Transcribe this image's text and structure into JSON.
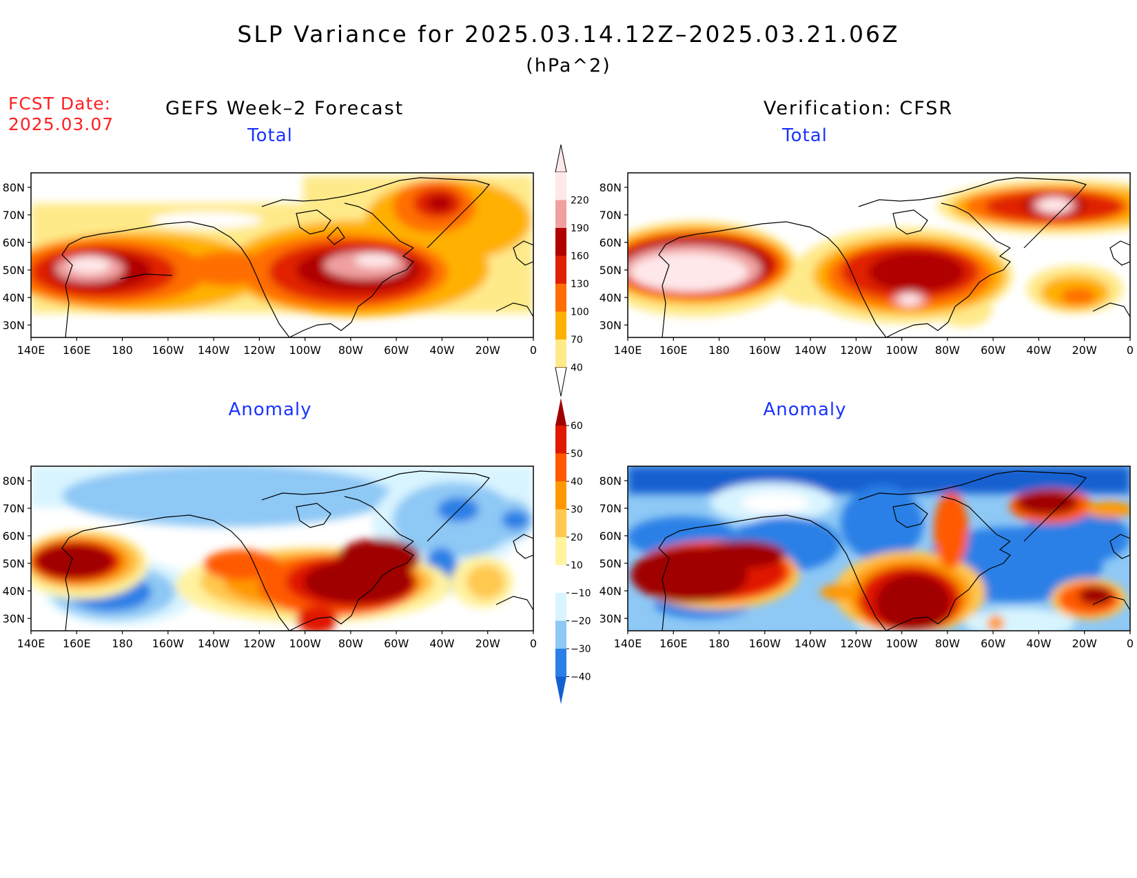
{
  "title": "SLP Variance for 2025.03.14.12Z–2025.03.21.06Z",
  "units": "(hPa^2)",
  "fcst_label": "FCST Date:",
  "fcst_date": "2025.03.07",
  "columns": {
    "left": "GEFS Week–2 Forecast",
    "right": "Verification: CFSR"
  },
  "panels": [
    {
      "id": "fcst-total",
      "title": "Total"
    },
    {
      "id": "verif-total",
      "title": "Total"
    },
    {
      "id": "fcst-anomaly",
      "title": "Anomaly"
    },
    {
      "id": "verif-anomaly",
      "title": "Anomaly"
    }
  ],
  "lat_labels": [
    "80N",
    "70N",
    "60N",
    "50N",
    "40N",
    "30N"
  ],
  "lon_labels": [
    "140E",
    "160E",
    "180",
    "160W",
    "140W",
    "120W",
    "100W",
    "80W",
    "60W",
    "40W",
    "20W",
    "0"
  ],
  "colorbars": {
    "total": {
      "levels": [
        "40",
        "70",
        "100",
        "130",
        "160",
        "190",
        "220"
      ],
      "colors": [
        "#ffea8a",
        "#ffb000",
        "#ff6e00",
        "#e02000",
        "#b00000",
        "#f0a0a0",
        "#ffe8ea"
      ]
    },
    "anomaly": {
      "levels": [
        "60",
        "50",
        "40",
        "30",
        "20",
        "10",
        "−10",
        "−20",
        "−30",
        "−40"
      ],
      "colors": [
        "#a00000",
        "#e01800",
        "#ff5a00",
        "#ff9800",
        "#ffc850",
        "#fff3a0",
        "#ffffff",
        "#d8f4ff",
        "#8ec8f5",
        "#2a80e6",
        "#1260d0"
      ]
    }
  },
  "colors": {
    "title_red": "#ff2020",
    "panel_title_blue": "#1a33ff"
  }
}
